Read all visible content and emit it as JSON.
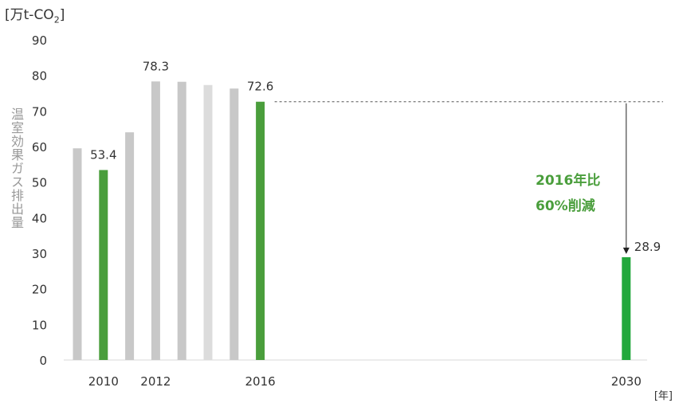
{
  "chart_data": {
    "type": "bar",
    "y_unit_text": "万t-CO",
    "y_unit_sub": "2",
    "ylabel": "温室効果ガス排出量",
    "x_unit": "[年]",
    "ylim": [
      0,
      90
    ],
    "yticks": [
      0,
      10,
      20,
      30,
      40,
      50,
      60,
      70,
      80,
      90
    ],
    "grid": false,
    "bars": [
      {
        "slot": 1,
        "value": 59.5,
        "color": "#c8c8c8"
      },
      {
        "slot": 2,
        "value": 53.4,
        "color": "#4a9e3c",
        "label": "53.4"
      },
      {
        "slot": 3,
        "value": 64.0,
        "color": "#c8c8c8"
      },
      {
        "slot": 4,
        "value": 78.3,
        "color": "#c8c8c8",
        "label": "78.3"
      },
      {
        "slot": 5,
        "value": 78.2,
        "color": "#c8c8c8"
      },
      {
        "slot": 6,
        "value": 77.3,
        "color": "#dcdcdc"
      },
      {
        "slot": 7,
        "value": 76.3,
        "color": "#c8c8c8"
      },
      {
        "slot": 8,
        "value": 72.6,
        "color": "#4a9e3c",
        "label": "72.6"
      },
      {
        "slot": 22,
        "value": 28.9,
        "color": "#22a83c",
        "label": "28.9"
      }
    ],
    "xticks": [
      {
        "slot": 2,
        "label": "2010"
      },
      {
        "slot": 4,
        "label": "2012"
      },
      {
        "slot": 8,
        "label": "2016"
      },
      {
        "slot": 22,
        "label": "2030"
      }
    ],
    "reference_value": 72.6,
    "annotation_lines": [
      "2016年比",
      "60%削減"
    ],
    "annotation_color": "#4a9e3c"
  }
}
